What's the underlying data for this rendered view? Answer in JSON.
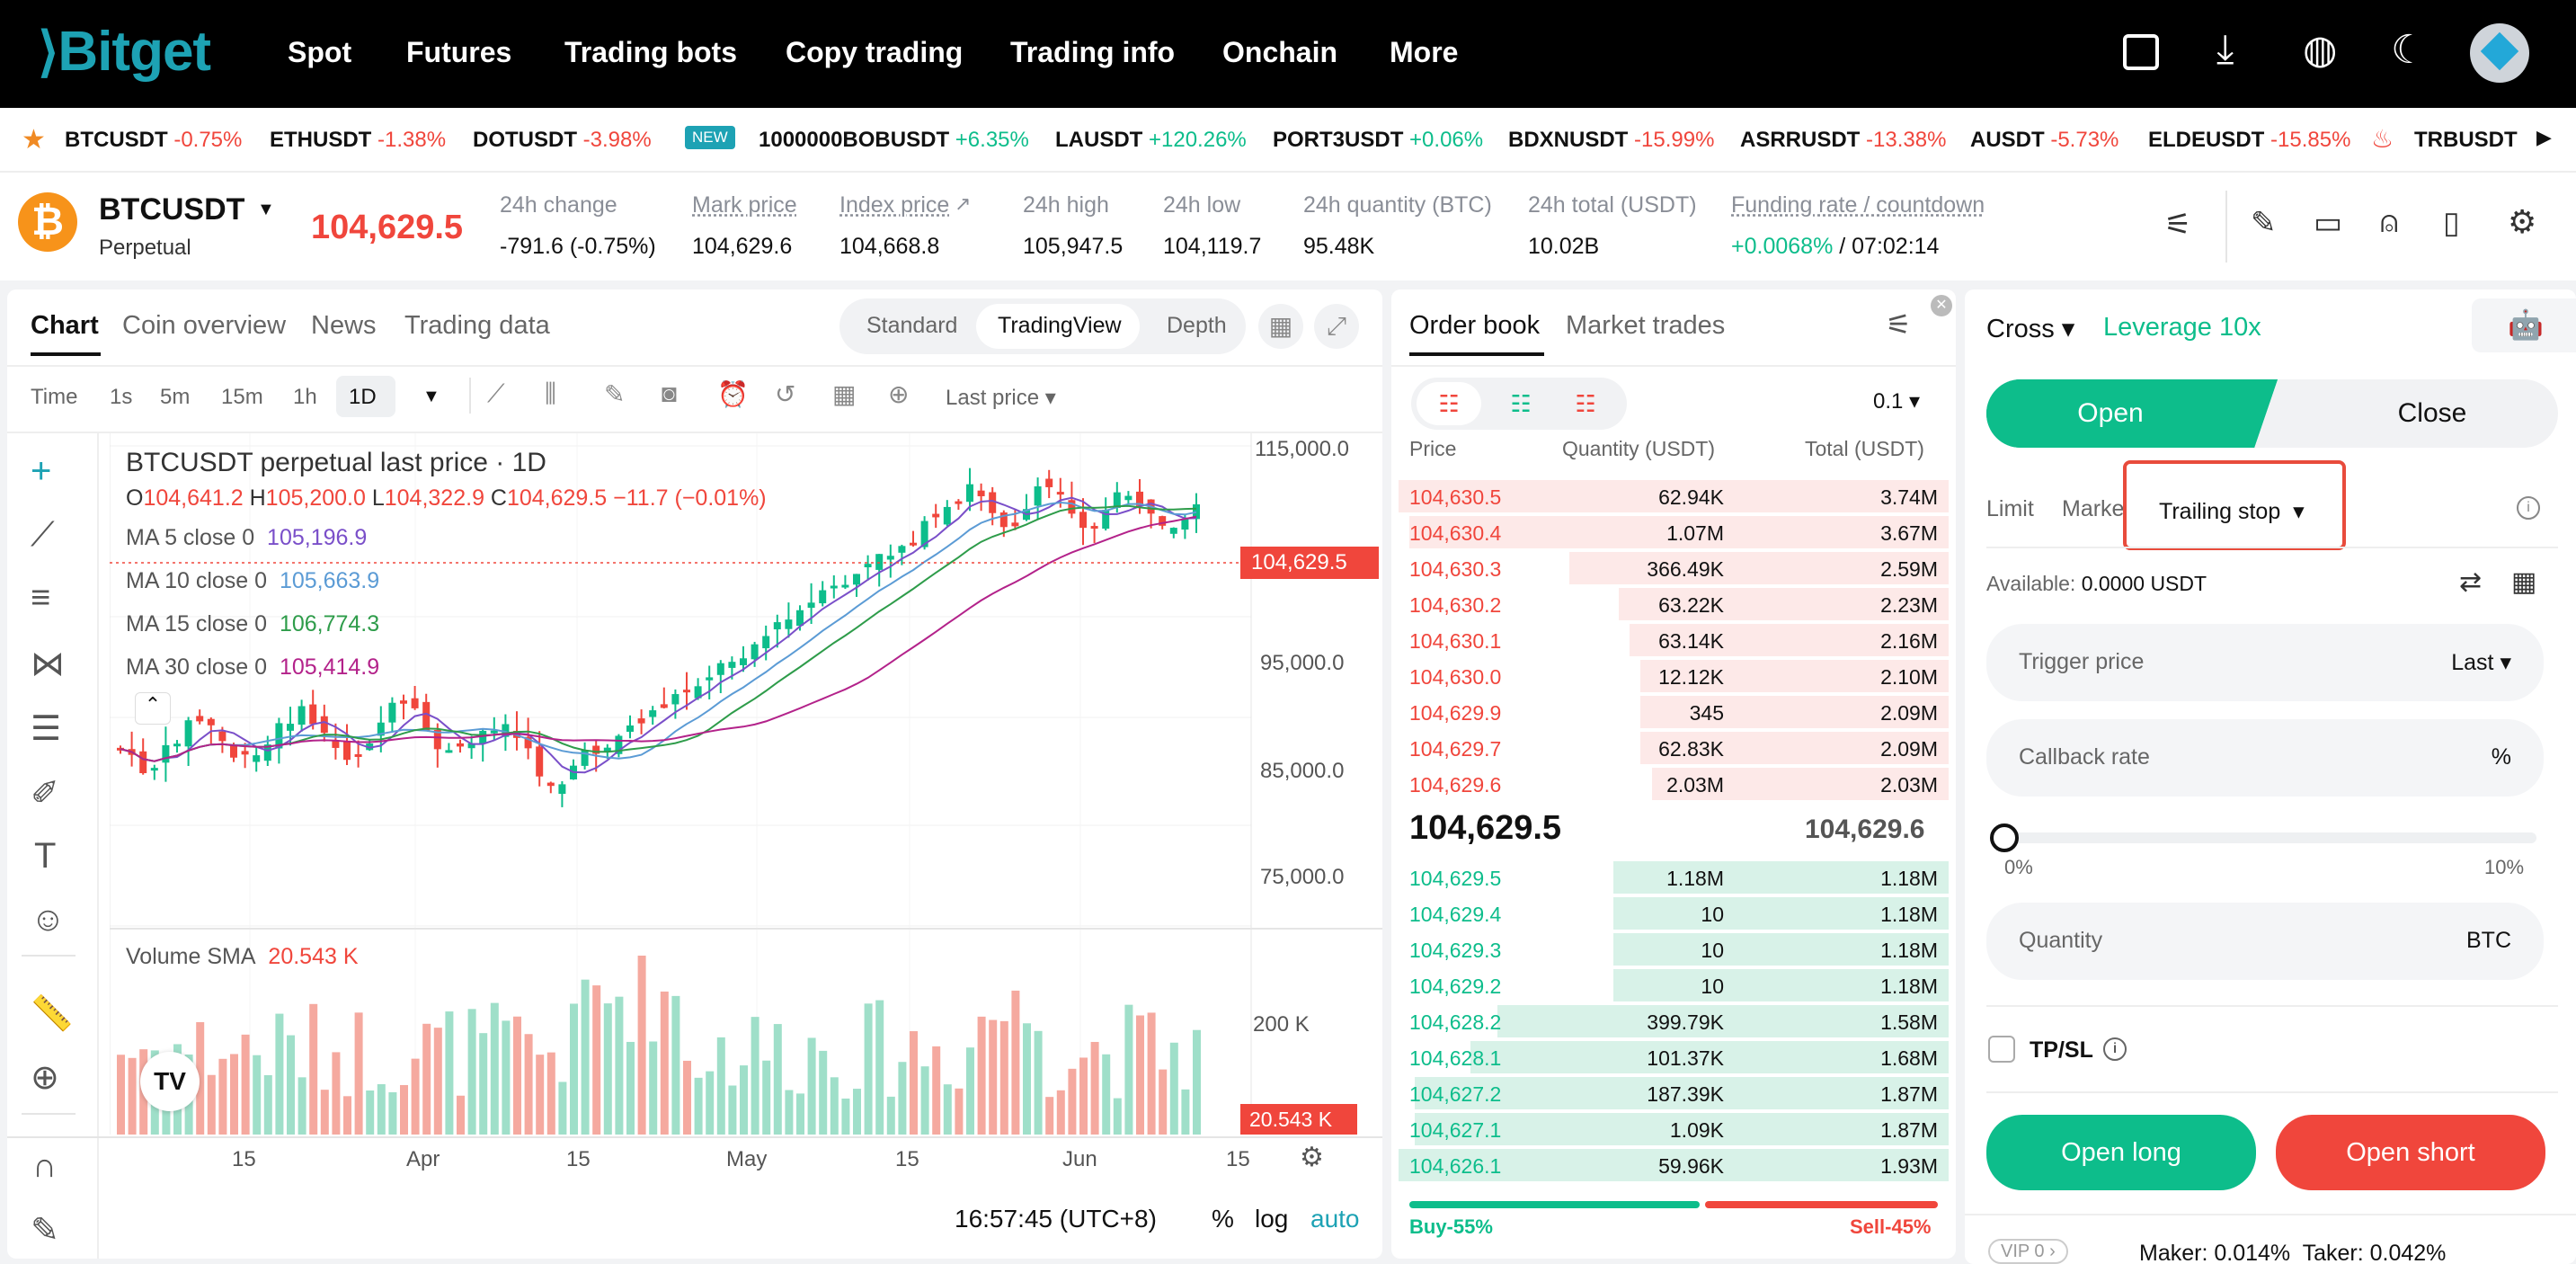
{
  "nav": {
    "logo": "Bitget",
    "items": [
      "Spot",
      "Futures",
      "Trading bots",
      "Copy trading",
      "Trading info",
      "Onchain",
      "More"
    ]
  },
  "ticker": [
    {
      "sym": "BTCUSDT",
      "chg": "-0.75%",
      "dir": "neg"
    },
    {
      "sym": "ETHUSDT",
      "chg": "-1.38%",
      "dir": "neg"
    },
    {
      "sym": "DOTUSDT",
      "chg": "-3.98%",
      "dir": "neg"
    },
    {
      "sym": "1000000BOBUSDT",
      "chg": "+6.35%",
      "dir": "pos",
      "badge": "NEW"
    },
    {
      "sym": "LAUSDT",
      "chg": "+120.26%",
      "dir": "pos"
    },
    {
      "sym": "PORT3USDT",
      "chg": "+0.06%",
      "dir": "pos"
    },
    {
      "sym": "BDXNUSDT",
      "chg": "-15.99%",
      "dir": "neg"
    },
    {
      "sym": "ASRRUSDT",
      "chg": "-13.38%",
      "dir": "neg"
    },
    {
      "sym": "AUSDT",
      "chg": "-5.73%",
      "dir": "neg"
    },
    {
      "sym": "ELDEUSDT",
      "chg": "-15.85%",
      "dir": "neg"
    },
    {
      "sym": "TRBUSDT",
      "chg": "",
      "dir": "neg"
    }
  ],
  "symbol": {
    "name": "BTCUSDT",
    "type": "Perpetual",
    "last": "104,629.5",
    "stats": [
      {
        "label": "24h change",
        "value": "-791.6 (-0.75%)"
      },
      {
        "label": "Mark price",
        "value": "104,629.6"
      },
      {
        "label": "Index price",
        "value": "104,668.8"
      },
      {
        "label": "24h high",
        "value": "105,947.5"
      },
      {
        "label": "24h low",
        "value": "104,119.7"
      },
      {
        "label": "24h quantity (BTC)",
        "value": "95.48K"
      },
      {
        "label": "24h total (USDT)",
        "value": "10.02B"
      },
      {
        "label": "Funding rate / countdown",
        "value": "+0.0068%",
        "value2": " / 07:02:14"
      }
    ]
  },
  "chart_panel": {
    "tabs": [
      "Chart",
      "Coin overview",
      "News",
      "Trading data"
    ],
    "views": [
      "Standard",
      "TradingView",
      "Depth"
    ],
    "intervals": [
      "Time",
      "1s",
      "5m",
      "15m",
      "1h",
      "1D"
    ],
    "price_type": "Last price",
    "legend": {
      "title": "BTCUSDT perpetual last price · 1D",
      "ohlc": {
        "o": "104,641.2",
        "h": "105,200.0",
        "l": "104,322.9",
        "c": "104,629.5",
        "chg": "−11.7 (−0.01%)"
      },
      "ma": [
        {
          "label": "MA 5 close 0",
          "value": "105,196.9",
          "color": "#7a4fc9"
        },
        {
          "label": "MA 10 close 0",
          "value": "105,663.9",
          "color": "#5b9bd5"
        },
        {
          "label": "MA 15 close 0",
          "value": "106,774.3",
          "color": "#2e9c4a"
        },
        {
          "label": "MA 30 close 0",
          "value": "105,414.9",
          "color": "#b3228a"
        }
      ]
    },
    "price_axis": [
      "115,000.0",
      "95,000.0",
      "85,000.0",
      "75,000.0"
    ],
    "current_price": "104,629.5",
    "volume_label": "Volume SMA",
    "volume_value": "20.543 K",
    "volume_axis": "200 K",
    "volume_current": "20.543 K",
    "date_axis": [
      "15",
      "Apr",
      "15",
      "May",
      "15",
      "Jun",
      "15"
    ],
    "clock": "16:57:45 (UTC+8)",
    "scale_opts": [
      "%",
      "log",
      "auto"
    ]
  },
  "orderbook": {
    "tabs": [
      "Order book",
      "Market trades"
    ],
    "precision": "0.1",
    "headers": [
      "Price",
      "Quantity (USDT)",
      "Total (USDT)"
    ],
    "asks": [
      {
        "p": "104,630.5",
        "q": "62.94K",
        "t": "3.74M",
        "d": 1.0
      },
      {
        "p": "104,630.4",
        "q": "1.07M",
        "t": "3.67M",
        "d": 0.98
      },
      {
        "p": "104,630.3",
        "q": "366.49K",
        "t": "2.59M",
        "d": 0.69
      },
      {
        "p": "104,630.2",
        "q": "63.22K",
        "t": "2.23M",
        "d": 0.6
      },
      {
        "p": "104,630.1",
        "q": "63.14K",
        "t": "2.16M",
        "d": 0.58
      },
      {
        "p": "104,630.0",
        "q": "12.12K",
        "t": "2.10M",
        "d": 0.56
      },
      {
        "p": "104,629.9",
        "q": "345",
        "t": "2.09M",
        "d": 0.56
      },
      {
        "p": "104,629.7",
        "q": "62.83K",
        "t": "2.09M",
        "d": 0.56
      },
      {
        "p": "104,629.6",
        "q": "2.03M",
        "t": "2.03M",
        "d": 0.54
      }
    ],
    "mid": "104,629.5",
    "mid_mark": "104,629.6",
    "bids": [
      {
        "p": "104,629.5",
        "q": "1.18M",
        "t": "1.18M",
        "d": 0.61
      },
      {
        "p": "104,629.4",
        "q": "10",
        "t": "1.18M",
        "d": 0.61
      },
      {
        "p": "104,629.3",
        "q": "10",
        "t": "1.18M",
        "d": 0.61
      },
      {
        "p": "104,629.2",
        "q": "10",
        "t": "1.18M",
        "d": 0.61
      },
      {
        "p": "104,628.2",
        "q": "399.79K",
        "t": "1.58M",
        "d": 0.82
      },
      {
        "p": "104,628.1",
        "q": "101.37K",
        "t": "1.68M",
        "d": 0.87
      },
      {
        "p": "104,627.2",
        "q": "187.39K",
        "t": "1.87M",
        "d": 0.97
      },
      {
        "p": "104,627.1",
        "q": "1.09K",
        "t": "1.87M",
        "d": 0.97
      },
      {
        "p": "104,626.1",
        "q": "59.96K",
        "t": "1.93M",
        "d": 1.0
      }
    ],
    "buy_pct": "Buy-55%",
    "sell_pct": "Sell-45%",
    "buy_ratio": 0.55
  },
  "trade": {
    "margin_mode": "Cross",
    "leverage": "Leverage 10x",
    "open": "Open",
    "close": "Close",
    "order_types": [
      "Limit",
      "Marke",
      "Trailing stop"
    ],
    "available_label": "Available:",
    "available": "0.0000 USDT",
    "trigger_label": "Trigger price",
    "trigger_type": "Last",
    "callback_label": "Callback rate",
    "callback_unit": "%",
    "slider_min": "0%",
    "slider_max": "10%",
    "slider_level": 0,
    "quantity_label": "Quantity",
    "quantity_unit": "BTC",
    "tpsl": "TP/SL",
    "open_long": "Open long",
    "open_short": "Open short",
    "vip": "VIP 0",
    "fees": "Maker: 0.014%  Taker: 0.042%"
  },
  "colors": {
    "up": "#0dbd8b",
    "down": "#f0463c",
    "brand": "#1da2b4",
    "highlight": "#e84b3c"
  }
}
